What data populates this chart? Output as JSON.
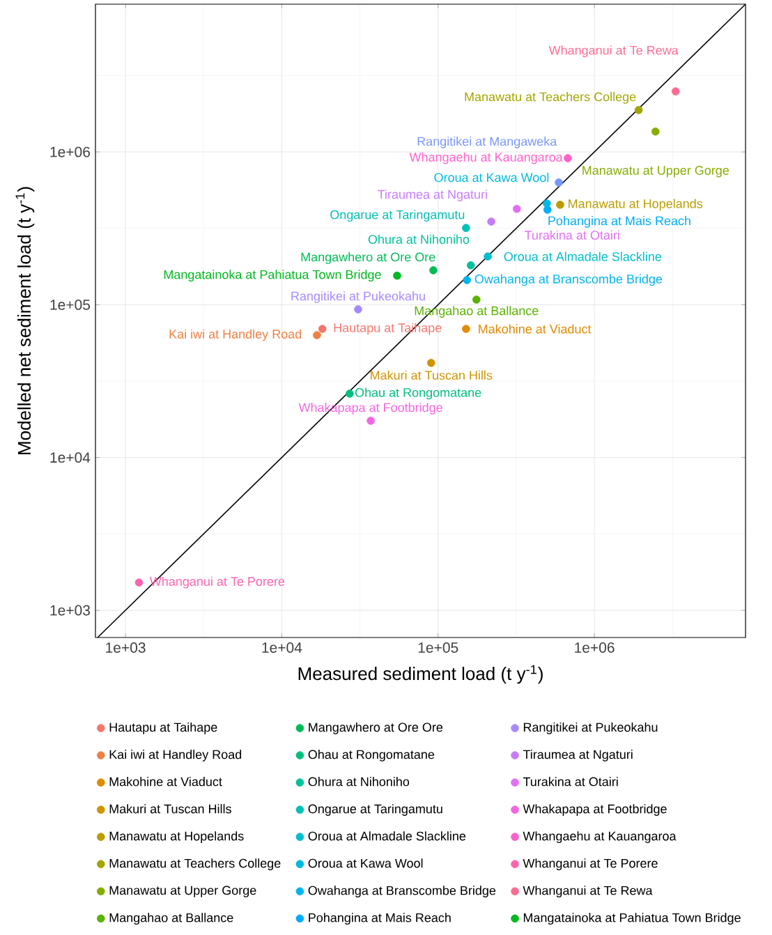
{
  "chart_data": {
    "type": "scatter",
    "xlabel": "Measured sediment load  (t y$^{-1}$)",
    "ylabel": "Modelled net sediment load  (t y$^{-1}$)",
    "log": "xy",
    "xlim": [
      643,
      9270000
    ],
    "ylim": [
      664,
      9270000
    ],
    "xticks": [
      {
        "value": 1000,
        "label": "1e+03"
      },
      {
        "value": 10000,
        "label": "1e+04"
      },
      {
        "value": 100000,
        "label": "1e+05"
      },
      {
        "value": 1000000,
        "label": "1e+06"
      }
    ],
    "yticks": [
      {
        "value": 1000,
        "label": "1e+03"
      },
      {
        "value": 10000,
        "label": "1e+04"
      },
      {
        "value": 100000,
        "label": "1e+05"
      },
      {
        "value": 1000000,
        "label": "1e+06"
      }
    ],
    "grid": true,
    "legend": "bottom",
    "marker": "circle",
    "series": [
      {
        "name": "Hautapu at Taihape",
        "color": "#F8766D",
        "x": [
          18200
        ],
        "values": [
          69500
        ]
      },
      {
        "name": "Kai iwi at Handley Road",
        "color": "#EE8043",
        "x": [
          16800
        ],
        "values": [
          63200
        ]
      },
      {
        "name": "Makohine at Viaduct",
        "color": "#E08B00",
        "x": [
          151000
        ],
        "values": [
          69500
        ]
      },
      {
        "name": "Makuri at Tuscan Hills",
        "color": "#CF9400",
        "x": [
          90300
        ],
        "values": [
          41600
        ]
      },
      {
        "name": "Manawatu at Hopelands",
        "color": "#BB9D00",
        "x": [
          604000
        ],
        "values": [
          451000
        ]
      },
      {
        "name": "Manawatu at Teachers College",
        "color": "#A3A500",
        "x": [
          1920000
        ],
        "values": [
          1880000
        ]
      },
      {
        "name": "Manawatu at Upper Gorge",
        "color": "#85AD00",
        "x": [
          2460000
        ],
        "values": [
          1360000
        ]
      },
      {
        "name": "Mangahao at Ballance",
        "color": "#5BB300",
        "x": [
          176000
        ],
        "values": [
          108000
        ]
      },
      {
        "name": "Mangatainoka at Pahiatua Town Bridge",
        "color": "#00B81F",
        "x": [
          54700
        ],
        "values": [
          155000
        ]
      },
      {
        "name": "Mangawhero at Ore Ore",
        "color": "#00BC56",
        "x": [
          93300
        ],
        "values": [
          168000
        ]
      },
      {
        "name": "Ohau at Rongomatane",
        "color": "#00BF7D",
        "x": [
          27200
        ],
        "values": [
          26200
        ]
      },
      {
        "name": "Ohura at Nihoniho",
        "color": "#00C19C",
        "x": [
          162000
        ],
        "values": [
          181000
        ]
      },
      {
        "name": "Ongarue at Taringamutu",
        "color": "#00C0B7",
        "x": [
          151000
        ],
        "values": [
          318000
        ]
      },
      {
        "name": "Oroua at Almadale Slackline",
        "color": "#00BECD",
        "x": [
          208000
        ],
        "values": [
          207000
        ]
      },
      {
        "name": "Oroua at Kawa Wool",
        "color": "#00BADE",
        "x": [
          497000
        ],
        "values": [
          460000
        ]
      },
      {
        "name": "Owahanga at Branscombe Bridge",
        "color": "#00B4EF",
        "x": [
          153000
        ],
        "values": [
          145000
        ]
      },
      {
        "name": "Pohangina at Mais Reach",
        "color": "#00ACFC",
        "x": [
          501000
        ],
        "values": [
          419000
        ]
      },
      {
        "name": "Rangitikei at Mangaweka",
        "color": "#7997FF",
        "x": [
          592000
        ],
        "values": [
          631000
        ]
      },
      {
        "name": "Rangitikei at Pukeokahu",
        "color": "#A58AFF",
        "x": [
          30800
        ],
        "values": [
          93300
        ]
      },
      {
        "name": "Tiraumea at Ngaturi",
        "color": "#C77CFF",
        "x": [
          219000
        ],
        "values": [
          350000
        ]
      },
      {
        "name": "Turakina at Otairi",
        "color": "#E26EF7",
        "x": [
          319000
        ],
        "values": [
          424000
        ]
      },
      {
        "name": "Whakapapa at Footbridge",
        "color": "#F564E3",
        "x": [
          37100
        ],
        "values": [
          17400
        ]
      },
      {
        "name": "Whangaehu at Kauangaroa",
        "color": "#FF61CC",
        "x": [
          676000
        ],
        "values": [
          910000
        ]
      },
      {
        "name": "Whanganui at Te Porere",
        "color": "#FF64B0",
        "x": [
          1220
        ],
        "values": [
          1520
        ]
      },
      {
        "name": "Whanganui at Te Rewa",
        "color": "#FF6C91",
        "x": [
          3310000
        ],
        "values": [
          2490000
        ]
      },
      {
        "type": "line",
        "color": "#000000",
        "marker": "none",
        "x": [
          664,
          9270000
        ],
        "values": [
          664,
          9270000
        ]
      }
    ]
  }
}
